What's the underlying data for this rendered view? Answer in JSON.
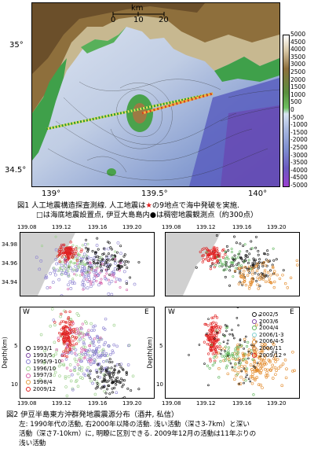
{
  "figure1": {
    "scale_unit": "km",
    "scale_ticks": [
      "0",
      "10",
      "20"
    ],
    "lat_labels": [
      "35°",
      "34.5°"
    ],
    "lon_labels": [
      "139°",
      "139.5°",
      "140°"
    ],
    "colorbar_ticks": [
      "5000",
      "4500",
      "4000",
      "3500",
      "3000",
      "2500",
      "2000",
      "1500",
      "1000",
      "500",
      "0",
      "-500",
      "-1000",
      "-1500",
      "-2000",
      "-2500",
      "-3000",
      "-3500",
      "-4000",
      "-4500",
      "-5000"
    ],
    "caption_line1_before": "図1  人工地震構造探査測線. 人工地震は",
    "caption_star": "★",
    "caption_line1_after": "の9地点で海中発破を実施.",
    "caption_line2_before": "□は海底地震設置点, 伊豆大島島内",
    "caption_dot": "●",
    "caption_line2_after": "は稠密地震観測点（約300点）"
  },
  "figure2": {
    "map_lon_ticks": [
      "139.08",
      "139.12",
      "139.16",
      "139.20"
    ],
    "map_lat_ticks": [
      "34.98",
      "34.96",
      "34.94"
    ],
    "depth_axis_label": "Depth(km)",
    "depth_ticks": [
      "5",
      "10"
    ],
    "west_label": "W",
    "east_label": "E",
    "left_legend": [
      {
        "label": "1993/1",
        "color": "#111111"
      },
      {
        "label": "1993/5",
        "color": "#7a3fa0"
      },
      {
        "label": "1995/9-10",
        "color": "#8a7fd0"
      },
      {
        "label": "1996/10",
        "color": "#9bd08a"
      },
      {
        "label": "1997/3",
        "color": "#d65fa8"
      },
      {
        "label": "1998/4",
        "color": "#e39a3d"
      },
      {
        "label": "2009/12",
        "color": "#e02020"
      }
    ],
    "right_legend": [
      {
        "label": "2002/5",
        "color": "#111111"
      },
      {
        "label": "2003/6",
        "color": "#7a3fa0"
      },
      {
        "label": "2004/4",
        "color": "#5fb55a"
      },
      {
        "label": "2006/1-3",
        "color": "#7fd0d0"
      },
      {
        "label": "2006/4-5",
        "color": "#e38a2a"
      },
      {
        "label": "2006/11",
        "color": "#c98a5a"
      },
      {
        "label": "2009/12",
        "color": "#e02020"
      }
    ],
    "caption_line1": "図2  伊豆半島東方沖群発地震震源分布（酒井, 私信）",
    "caption_line2": "左: 1990年代の活動, 右2000年以降の活動. 浅い活動（深さ3-7km）と深い",
    "caption_line3": "活動（深さ7-10km）に, 明瞭に区別できる. 2009年12月の活動は11年ぶりの",
    "caption_line4": "浅い活動"
  }
}
